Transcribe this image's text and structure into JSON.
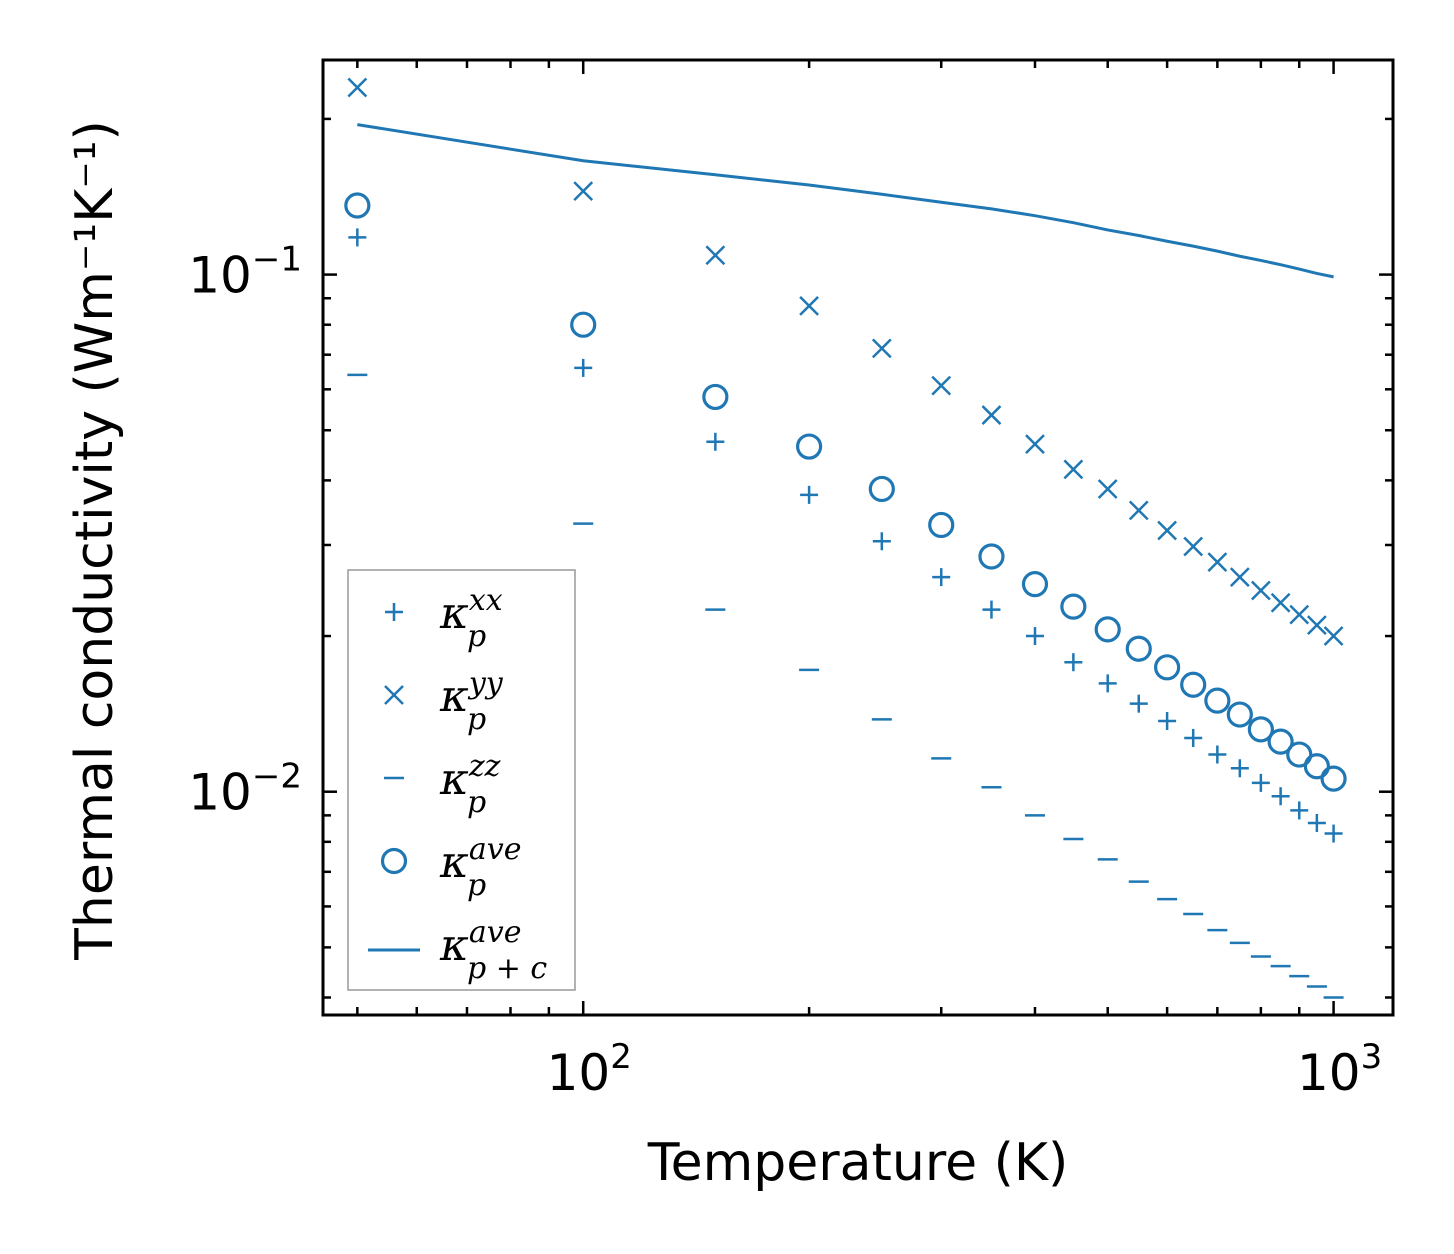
{
  "chart_data": {
    "type": "scatter",
    "xscale": "log",
    "yscale": "log",
    "xlabel": "Temperature (K)",
    "ylabel": "Thermal conductivity (Wm⁻¹K⁻¹)",
    "xlim": [
      45,
      1200
    ],
    "ylim": [
      0.0037,
      0.26
    ],
    "grid": false,
    "legend_position": "lower-left",
    "x_ticks": [
      {
        "value": 100,
        "base": "10",
        "exp": "2"
      },
      {
        "value": 1000,
        "base": "10",
        "exp": "3"
      }
    ],
    "y_ticks": [
      {
        "value": 0.01,
        "base": "10",
        "exp": "−2"
      },
      {
        "value": 0.1,
        "base": "10",
        "exp": "−1"
      }
    ],
    "x": [
      50,
      100,
      150,
      200,
      250,
      300,
      350,
      400,
      450,
      500,
      550,
      600,
      650,
      700,
      750,
      800,
      850,
      900,
      950,
      1000
    ],
    "series": [
      {
        "name": "kappa_p_xx",
        "label_base": "κ",
        "label_sub": "p",
        "label_sup": "xx",
        "marker": "plus",
        "values": [
          0.118,
          0.066,
          0.0475,
          0.0375,
          0.0305,
          0.026,
          0.0225,
          0.02,
          0.0178,
          0.0162,
          0.0148,
          0.0137,
          0.0127,
          0.0118,
          0.0111,
          0.0104,
          0.0098,
          0.0092,
          0.0087,
          0.0083
        ]
      },
      {
        "name": "kappa_p_yy",
        "label_base": "κ",
        "label_sub": "p",
        "label_sup": "yy",
        "marker": "x",
        "values": [
          0.23,
          0.145,
          0.109,
          0.087,
          0.072,
          0.061,
          0.0535,
          0.047,
          0.042,
          0.0385,
          0.035,
          0.032,
          0.0298,
          0.0278,
          0.026,
          0.0245,
          0.0232,
          0.022,
          0.021,
          0.02
        ]
      },
      {
        "name": "kappa_p_zz",
        "label_base": "κ",
        "label_sub": "p",
        "label_sup": "zz",
        "marker": "hline",
        "values": [
          0.064,
          0.033,
          0.0225,
          0.0172,
          0.0138,
          0.0116,
          0.0102,
          0.009,
          0.0081,
          0.0074,
          0.0067,
          0.0062,
          0.0058,
          0.0054,
          0.0051,
          0.0048,
          0.0046,
          0.0044,
          0.0042,
          0.004
        ]
      },
      {
        "name": "kappa_p_ave",
        "label_base": "κ",
        "label_sub": "p",
        "label_sup": "ave",
        "marker": "circle",
        "values": [
          0.136,
          0.08,
          0.058,
          0.0465,
          0.0385,
          0.0328,
          0.0285,
          0.0252,
          0.0228,
          0.0206,
          0.0189,
          0.0174,
          0.0161,
          0.015,
          0.0141,
          0.0132,
          0.0125,
          0.0118,
          0.0112,
          0.0106
        ]
      },
      {
        "name": "kappa_pc_ave",
        "label_base": "κ",
        "label_sub": "p + c",
        "label_sup": "ave",
        "marker": "line",
        "values": [
          0.195,
          0.166,
          0.156,
          0.149,
          0.143,
          0.138,
          0.134,
          0.13,
          0.126,
          0.122,
          0.119,
          0.116,
          0.1135,
          0.111,
          0.1085,
          0.1065,
          0.1045,
          0.1025,
          0.1005,
          0.099
        ]
      }
    ]
  },
  "colors": {
    "series": "#1f77b4",
    "axis": "#000000",
    "legend_border": "#999999"
  }
}
